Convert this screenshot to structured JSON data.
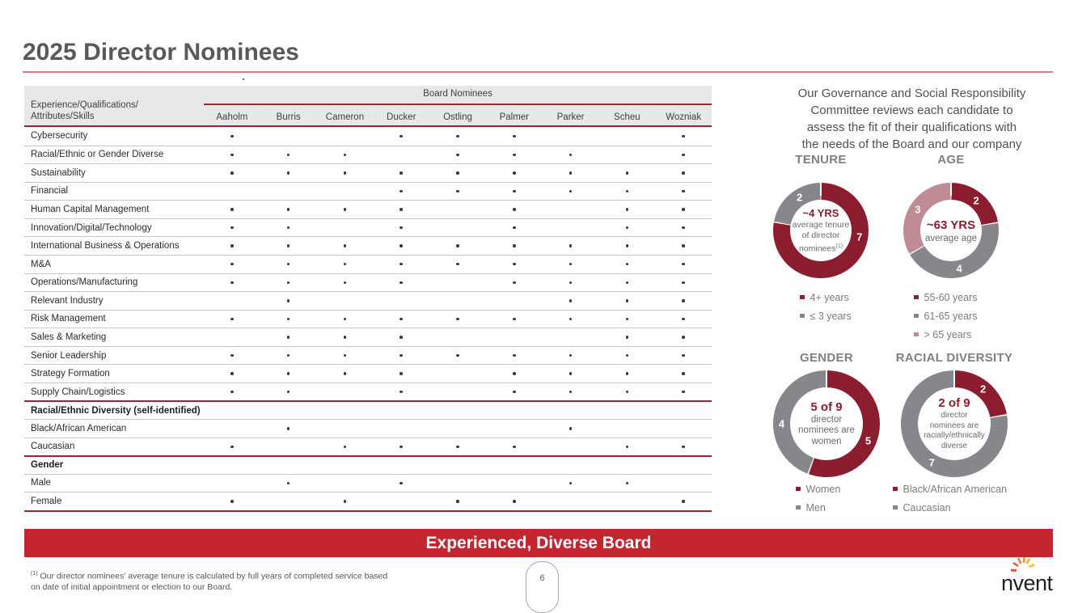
{
  "colors": {
    "maroon": "#8C1D2E",
    "line_maroon": "#A02239",
    "gray_seg": "#85878A",
    "mauve": "#BF8C96",
    "banner_red": "#C4262F",
    "title_gray": "#58595B"
  },
  "slide": {
    "title": "2025 Director Nominees",
    "banner": "Experienced, Diverse Board",
    "page_number": "6",
    "logo_text": "nvent",
    "footnote_marker": "(1)",
    "footnote_line1": "Our director nominees’ average tenure is calculated by full years of completed service based",
    "footnote_line2": "on date of initial appointment or election to our Board."
  },
  "table": {
    "group_header": "Board Nominees",
    "row_header_line1": "Experience/Qualifications/",
    "row_header_line2": "Attributes/Skills",
    "columns": [
      "Aaholm",
      "Burris",
      "Cameron",
      "Ducker",
      "Ostling",
      "Palmer",
      "Parker",
      "Scheu",
      "Wozniak"
    ],
    "rows": [
      {
        "label": "Cybersecurity",
        "dots": [
          1,
          0,
          0,
          1,
          1,
          1,
          0,
          0,
          1
        ]
      },
      {
        "label": "Racial/Ethnic or Gender Diverse",
        "dots": [
          1,
          1,
          1,
          0,
          1,
          1,
          1,
          0,
          1
        ]
      },
      {
        "label": "Sustainability",
        "dots": [
          1,
          1,
          1,
          1,
          1,
          1,
          1,
          1,
          1
        ]
      },
      {
        "label": "Financial",
        "dots": [
          0,
          0,
          0,
          1,
          1,
          1,
          1,
          1,
          1
        ]
      },
      {
        "label": "Human Capital Management",
        "dots": [
          1,
          1,
          1,
          1,
          0,
          1,
          0,
          1,
          1
        ]
      },
      {
        "label": "Innovation/Digital/Technology",
        "dots": [
          1,
          1,
          0,
          1,
          0,
          1,
          0,
          1,
          1
        ]
      },
      {
        "label": "International Business & Operations",
        "dots": [
          1,
          1,
          1,
          1,
          1,
          1,
          1,
          1,
          1
        ]
      },
      {
        "label": "M&A",
        "dots": [
          1,
          1,
          1,
          1,
          1,
          1,
          1,
          1,
          1
        ]
      },
      {
        "label": "Operations/Manufacturing",
        "dots": [
          1,
          1,
          1,
          1,
          0,
          1,
          1,
          1,
          1
        ]
      },
      {
        "label": "Relevant Industry",
        "dots": [
          0,
          1,
          0,
          0,
          0,
          0,
          1,
          1,
          1
        ]
      },
      {
        "label": "Risk Management",
        "dots": [
          1,
          1,
          1,
          1,
          1,
          1,
          1,
          1,
          1
        ]
      },
      {
        "label": "Sales & Marketing",
        "dots": [
          0,
          1,
          1,
          1,
          0,
          0,
          0,
          1,
          1
        ]
      },
      {
        "label": "Senior Leadership",
        "dots": [
          1,
          1,
          1,
          1,
          1,
          1,
          1,
          1,
          1
        ]
      },
      {
        "label": "Strategy Formation",
        "dots": [
          1,
          1,
          1,
          1,
          0,
          1,
          1,
          1,
          1
        ]
      },
      {
        "label": "Supply Chain/Logistics",
        "dots": [
          1,
          1,
          0,
          1,
          0,
          1,
          1,
          1,
          1
        ]
      },
      {
        "label": "Racial/Ethnic Diversity (self-identified)",
        "section": true
      },
      {
        "label": "Black/African American",
        "dots": [
          0,
          1,
          0,
          0,
          0,
          0,
          1,
          0,
          0
        ]
      },
      {
        "label": "Caucasian",
        "dots": [
          1,
          0,
          1,
          1,
          1,
          1,
          0,
          1,
          1
        ]
      },
      {
        "label": "Gender",
        "section": true
      },
      {
        "label": "Male",
        "dots": [
          0,
          1,
          0,
          1,
          0,
          0,
          1,
          1,
          0
        ]
      },
      {
        "label": "Female",
        "dots": [
          1,
          0,
          1,
          0,
          1,
          1,
          0,
          0,
          1
        ]
      }
    ]
  },
  "sidebar": {
    "intro_lines": [
      "Our Governance and Social Responsibility",
      "Committee reviews each candidate to",
      "assess the fit of their qualifications with",
      "the needs of the Board and our company"
    ]
  },
  "chart_data": [
    {
      "id": "tenure",
      "type": "donut",
      "title": "TENURE",
      "center_lines": [
        "~4 YRS",
        "average tenure",
        "of director",
        "nominees(1)"
      ],
      "segments": [
        {
          "label": "4+ years",
          "value": 7,
          "color": "#8C1D2E",
          "label_angle": 100
        },
        {
          "label": "≤ 3 years",
          "value": 2,
          "color": "#85878A",
          "label_angle": 327
        }
      ],
      "legend_position": "below"
    },
    {
      "id": "age",
      "type": "donut",
      "title": "AGE",
      "center_lines": [
        "~63 YRS",
        "average age"
      ],
      "segments": [
        {
          "label": "55-60 years",
          "value": 2,
          "color": "#8C1D2E",
          "label_angle": 40
        },
        {
          "label": "61-65 years",
          "value": 4,
          "color": "#85878A",
          "label_angle": 168
        },
        {
          "label": "> 65 years",
          "value": 3,
          "color": "#BF8C96",
          "label_angle": 302
        }
      ],
      "legend_position": "below"
    },
    {
      "id": "gender",
      "type": "donut",
      "title": "GENDER",
      "center_lines": [
        "5 of 9",
        "director",
        "nominees are",
        "women"
      ],
      "segments": [
        {
          "label": "Women",
          "value": 5,
          "color": "#8C1D2E",
          "label_angle": 112
        },
        {
          "label": "Men",
          "value": 4,
          "color": "#85878A",
          "label_angle": 270
        }
      ],
      "legend_position": "below"
    },
    {
      "id": "racial",
      "type": "donut",
      "title": "RACIAL DIVERSITY",
      "center_lines": [
        "2 of 9",
        "director",
        "nominees are",
        "racially/ethnically",
        "diverse"
      ],
      "segments": [
        {
          "label": "Black/African American",
          "value": 2,
          "color": "#8C1D2E",
          "label_angle": 40
        },
        {
          "label": "Caucasian",
          "value": 7,
          "color": "#85878A",
          "label_angle": 210
        }
      ],
      "legend_position": "below"
    }
  ]
}
